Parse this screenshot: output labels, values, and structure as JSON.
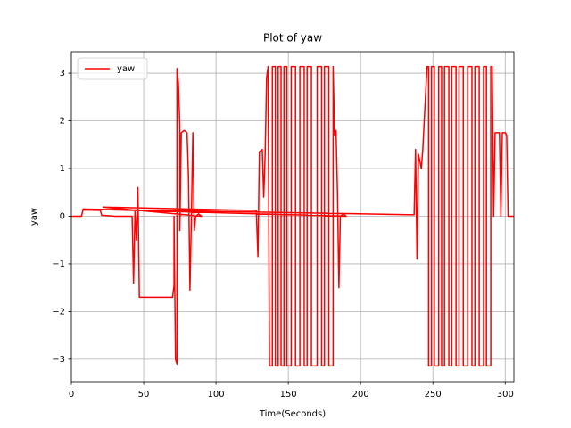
{
  "chart_data": {
    "type": "line",
    "title": "Plot of yaw",
    "xlabel": "Time(Seconds)",
    "ylabel": "yaw",
    "x": [
      0,
      7,
      8,
      20,
      21,
      30,
      42,
      43,
      44,
      45,
      46,
      47,
      50,
      60,
      70,
      71,
      71,
      72,
      73,
      73,
      74,
      75,
      75,
      76,
      78,
      80,
      81,
      82,
      83,
      84,
      85,
      86,
      88,
      90,
      22,
      128,
      128,
      129,
      130,
      132,
      133,
      134,
      135,
      136,
      137,
      139,
      139,
      141,
      141,
      143,
      143,
      145,
      145,
      147,
      147,
      149,
      149,
      152,
      152,
      155,
      155,
      158,
      158,
      161,
      161,
      163,
      163,
      166,
      166,
      170,
      170,
      173,
      173,
      175,
      175,
      178,
      178,
      181,
      181,
      182,
      183,
      184,
      185,
      186,
      188,
      190,
      8,
      237,
      238,
      239,
      240,
      242,
      243,
      245,
      246,
      247,
      247,
      249,
      249,
      251,
      251,
      254,
      254,
      256,
      256,
      258,
      258,
      261,
      261,
      263,
      263,
      266,
      266,
      268,
      268,
      271,
      271,
      274,
      274,
      277,
      277,
      279,
      279,
      282,
      282,
      285,
      285,
      287,
      287,
      290,
      290,
      291,
      292,
      293,
      296,
      297,
      298,
      300,
      301,
      302,
      306
    ],
    "series": [
      {
        "name": "yaw",
        "color": "#ff0000",
        "values": [
          0,
          0,
          0.13,
          0.12,
          0.02,
          0,
          0,
          -1.4,
          0.1,
          -0.5,
          0.6,
          -1.7,
          -1.7,
          -1.7,
          -1.7,
          -1.45,
          0,
          -3.0,
          -3.1,
          3.1,
          2.8,
          1.9,
          -0.3,
          1.75,
          1.8,
          1.75,
          0.8,
          -1.55,
          0,
          1.75,
          -0.3,
          0,
          0.05,
          0,
          0.19,
          0.12,
          0,
          -0.85,
          1.35,
          1.4,
          0.4,
          1.3,
          2.9,
          3.14,
          -3.14,
          -3.14,
          3.14,
          3.14,
          -3.14,
          -3.14,
          3.14,
          3.14,
          -3.14,
          -3.14,
          3.14,
          3.14,
          -3.14,
          -3.14,
          3.14,
          3.14,
          -3.14,
          -3.14,
          3.14,
          3.14,
          -3.14,
          -3.14,
          3.14,
          3.14,
          -3.14,
          -3.14,
          3.14,
          3.14,
          -3.14,
          -3.14,
          3.14,
          3.14,
          -3.14,
          -3.14,
          3.14,
          1.7,
          1.8,
          0.5,
          -1.5,
          0,
          0.05,
          0,
          0.15,
          0.03,
          1.4,
          -0.9,
          1.3,
          1.0,
          1.4,
          2.6,
          3.14,
          3.14,
          -3.14,
          -3.14,
          3.14,
          3.14,
          -3.14,
          -3.14,
          3.14,
          3.14,
          -3.14,
          -3.14,
          3.14,
          3.14,
          -3.14,
          -3.14,
          3.14,
          3.14,
          -3.14,
          -3.14,
          3.14,
          3.14,
          -3.14,
          -3.14,
          3.14,
          3.14,
          -3.14,
          -3.14,
          3.14,
          3.14,
          -3.14,
          -3.14,
          3.14,
          3.14,
          -3.14,
          -3.14,
          3.14,
          3.14,
          0,
          1.75,
          1.75,
          0,
          1.75,
          1.75,
          1.7,
          0,
          0
        ]
      }
    ],
    "xlim": [
      0,
      306
    ],
    "ylim": [
      -3.47,
      3.45
    ],
    "xticks": [
      0,
      50,
      100,
      150,
      200,
      250,
      300
    ],
    "yticks": [
      {
        "value": -3,
        "label": "−3"
      },
      {
        "value": -2,
        "label": "−2"
      },
      {
        "value": -1,
        "label": "−1"
      },
      0,
      1,
      2,
      3
    ],
    "grid": true,
    "legend": "upper-left"
  }
}
